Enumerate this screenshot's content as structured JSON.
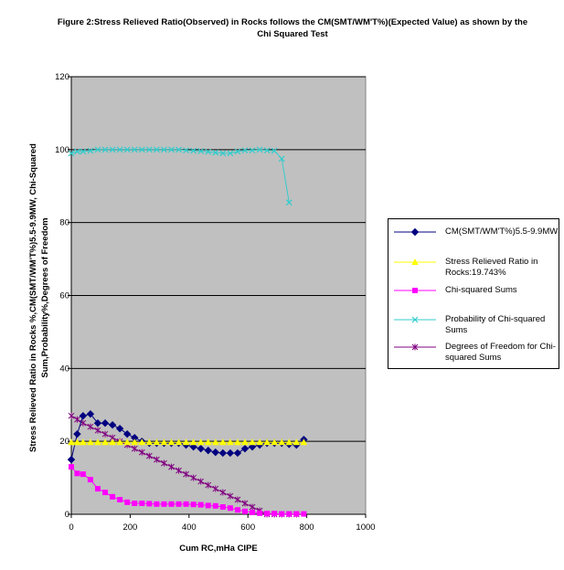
{
  "chart_data": {
    "type": "line",
    "title": "Figure 2:Stress Relieved Ratio(Observed) in Rocks follows the CM(SMT/WM'T%)(Expected Value) as shown by the Chi Squared Test",
    "xlabel": "Cum RC,mHa CIPE",
    "ylabel": "Stress Relieved Ratio in Rocks %,CM(SMT/WM'T%)5.5-9.9MW, Chi-Squared Sum,Probability%,Degrees of Freedom",
    "xlim": [
      0,
      1000
    ],
    "ylim": [
      0,
      120
    ],
    "xticks": [
      "0",
      "200",
      "400",
      "600",
      "800",
      "1000"
    ],
    "yticks": [
      "0",
      "20",
      "40",
      "60",
      "80",
      "100",
      "120"
    ],
    "grid": "horizontal",
    "legend_position": "right",
    "plot_background": "#c0c0c0",
    "series": [
      {
        "name": "CM(SMT/WM'T%)5.5-9.9MW",
        "color": "#000080",
        "marker": "diamond",
        "x": [
          0,
          20,
          40,
          65,
          90,
          115,
          140,
          165,
          190,
          215,
          240,
          265,
          290,
          315,
          340,
          365,
          390,
          415,
          440,
          465,
          490,
          515,
          540,
          565,
          590,
          615,
          640,
          665,
          690,
          715,
          740,
          765,
          790
        ],
        "y": [
          15,
          22,
          27,
          27.5,
          25,
          25,
          24.5,
          23.5,
          22,
          21,
          20,
          19.5,
          19.5,
          19.5,
          19.5,
          19.5,
          19,
          18.5,
          18,
          17.5,
          17,
          16.8,
          16.8,
          16.8,
          18,
          18.5,
          19,
          19.5,
          19.5,
          19.5,
          19.2,
          19,
          20.5
        ]
      },
      {
        "name": "Stress Relieved Ratio in Rocks:19.743%",
        "color": "#ffff00",
        "marker": "triangle",
        "x": [
          0,
          20,
          40,
          65,
          90,
          115,
          140,
          165,
          190,
          215,
          240,
          265,
          290,
          315,
          340,
          365,
          390,
          415,
          440,
          465,
          490,
          515,
          540,
          565,
          590,
          615,
          640,
          665,
          690,
          715,
          740,
          765,
          790
        ],
        "y": [
          19.743,
          19.743,
          19.743,
          19.743,
          19.743,
          19.743,
          19.743,
          19.743,
          19.743,
          19.743,
          19.743,
          19.743,
          19.743,
          19.743,
          19.743,
          19.743,
          19.743,
          19.743,
          19.743,
          19.743,
          19.743,
          19.743,
          19.743,
          19.743,
          19.743,
          19.743,
          19.743,
          19.743,
          19.743,
          19.743,
          19.743,
          19.743,
          19.743
        ]
      },
      {
        "name": "Chi-squared Sums",
        "color": "#ff00ff",
        "marker": "square",
        "x": [
          0,
          20,
          40,
          65,
          90,
          115,
          140,
          165,
          190,
          215,
          240,
          265,
          290,
          315,
          340,
          365,
          390,
          415,
          440,
          465,
          490,
          515,
          540,
          565,
          590,
          615,
          640,
          665,
          690,
          715,
          740,
          765,
          790
        ],
        "y": [
          13,
          11.2,
          11,
          9.5,
          7,
          6,
          4.8,
          4,
          3.3,
          3,
          3,
          2.9,
          2.8,
          2.8,
          2.8,
          2.8,
          2.8,
          2.7,
          2.6,
          2.4,
          2.3,
          2,
          1.7,
          1.2,
          0.8,
          0.5,
          0.3,
          0.2,
          0.2,
          0.1,
          0.1,
          0.1,
          0.1
        ]
      },
      {
        "name": "Probability of Chi-squared Sums",
        "color": "#33cccc",
        "marker": "x",
        "x": [
          0,
          20,
          40,
          65,
          90,
          115,
          140,
          165,
          190,
          215,
          240,
          265,
          290,
          315,
          340,
          365,
          390,
          415,
          440,
          465,
          490,
          515,
          540,
          565,
          590,
          615,
          640,
          665,
          690,
          715,
          740
        ],
        "y": [
          99,
          99.5,
          99.5,
          99.7,
          100,
          100,
          100,
          100,
          100,
          100,
          100,
          100,
          100,
          100,
          100,
          100,
          99.8,
          99.7,
          99.6,
          99.4,
          99.2,
          99,
          99,
          99.5,
          99.8,
          99.8,
          100,
          99.8,
          99.7,
          97.5,
          85.5
        ]
      },
      {
        "name": "Degrees of Freedom for Chi-squared Sums",
        "color": "#800080",
        "marker": "star",
        "x": [
          0,
          20,
          40,
          65,
          90,
          115,
          140,
          165,
          190,
          215,
          240,
          265,
          290,
          315,
          340,
          365,
          390,
          415,
          440,
          465,
          490,
          515,
          540,
          565,
          590,
          615,
          640,
          665,
          690,
          715,
          740,
          765
        ],
        "y": [
          27,
          26,
          25,
          24,
          23,
          22,
          21,
          20,
          19,
          18,
          17,
          16,
          15,
          14,
          13,
          12,
          11,
          10,
          9,
          8,
          7,
          6,
          5,
          4,
          3,
          2,
          1,
          0,
          0,
          0,
          0,
          0
        ]
      }
    ]
  },
  "legend_labels": [
    "CM(SMT/WM'T%)5.5-9.9MW",
    "Stress Relieved Ratio in Rocks:19.743%",
    "Chi-squared Sums",
    "Probability of Chi-squared Sums",
    "Degrees of Freedom for Chi-squared Sums"
  ]
}
